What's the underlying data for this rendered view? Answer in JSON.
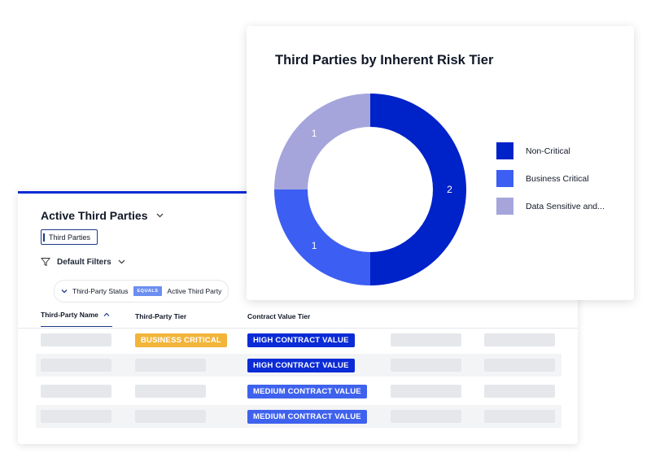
{
  "table_panel": {
    "title": "Active Third Parties",
    "search_value": "Third Parties",
    "filters_label": "Default Filters",
    "filter_chip": {
      "field": "Third-Party Status",
      "operator": "EQUALS",
      "value": "Active Third Party"
    },
    "columns": [
      "Third-Party Name",
      "Third-Party Tier",
      "Contract Value Tier"
    ],
    "rows": [
      {
        "tier": "BUSINESS CRITICAL",
        "contract": "HIGH CONTRACT VALUE"
      },
      {
        "tier": "",
        "contract": "HIGH CONTRACT VALUE"
      },
      {
        "tier": "",
        "contract": "MEDIUM CONTRACT VALUE"
      },
      {
        "tier": "",
        "contract": "MEDIUM CONTRACT VALUE"
      }
    ]
  },
  "colors": {
    "non_critical": "#0022c9",
    "business_critical": "#3d5ef2",
    "data_sensitive": "#a5a5dc",
    "badge_business_critical": "#f2b53a",
    "badge_high": "#0b2bd6",
    "badge_medium": "#3f62ee"
  },
  "chart_data": {
    "type": "pie",
    "title": "Third Parties by Inherent Risk Tier",
    "categories": [
      "Non-Critical",
      "Business Critical",
      "Data Sensitive and..."
    ],
    "values": [
      2,
      1,
      1
    ],
    "colors": [
      "#0022c9",
      "#3d5ef2",
      "#a5a5dc"
    ],
    "donut": true,
    "legend_position": "right"
  }
}
